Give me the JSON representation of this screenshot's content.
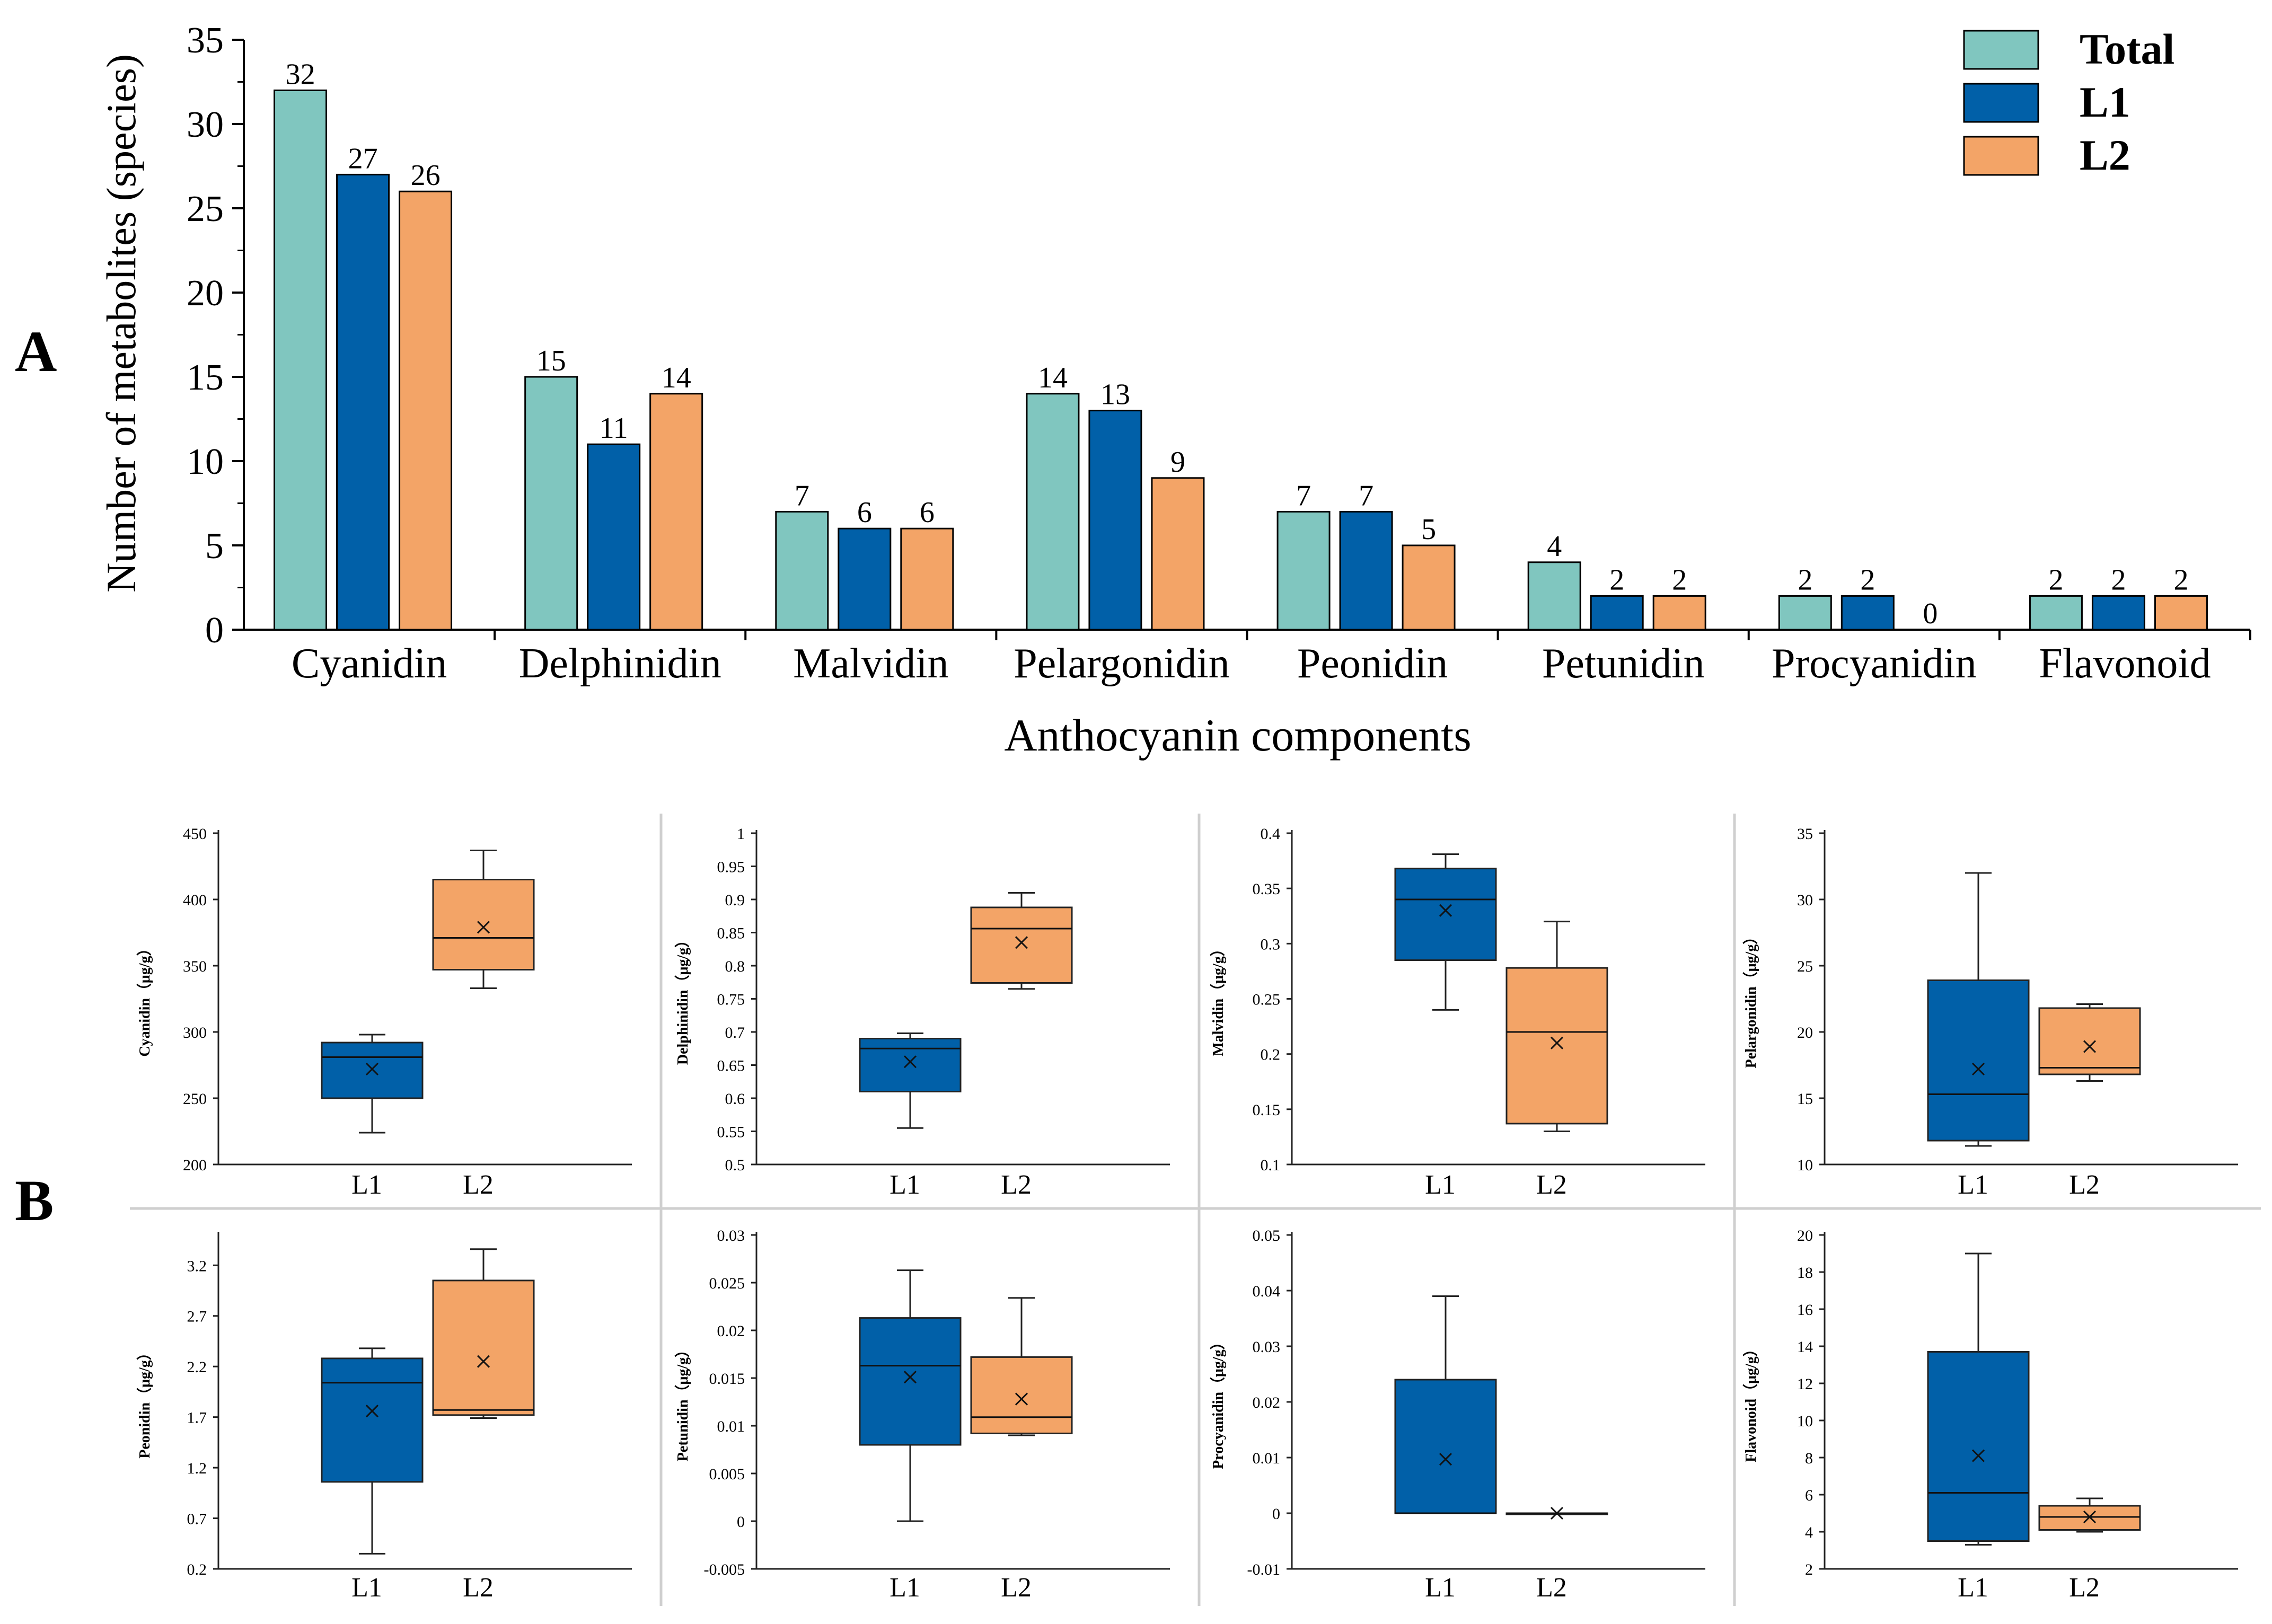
{
  "colors": {
    "total": "#80c6bf",
    "l1": "#0160a8",
    "l2": "#f3a467",
    "axis": "#000000",
    "divider": "#cfcfcf"
  },
  "panel_labels": {
    "a": "A",
    "b": "B"
  },
  "chart_data": [
    {
      "type": "bar",
      "title": "",
      "xlabel": "Anthocyanin components",
      "ylabel": "Number of metabolites (species)",
      "ylim": [
        0,
        35
      ],
      "yticks": [
        0,
        5,
        10,
        15,
        20,
        25,
        30,
        35
      ],
      "categories": [
        "Cyanidin",
        "Delphinidin",
        "Malvidin",
        "Pelargonidin",
        "Peonidin",
        "Petunidin",
        "Procyanidin",
        "Flavonoid"
      ],
      "series": [
        {
          "name": "Total",
          "color_key": "total",
          "values": [
            32,
            15,
            7,
            14,
            7,
            4,
            2,
            2
          ]
        },
        {
          "name": "L1",
          "color_key": "l1",
          "values": [
            27,
            11,
            6,
            13,
            7,
            2,
            2,
            2
          ]
        },
        {
          "name": "L2",
          "color_key": "l2",
          "values": [
            26,
            14,
            6,
            9,
            5,
            2,
            0,
            2
          ]
        }
      ],
      "legend": {
        "placement": "top-right",
        "entries": [
          "Total",
          "L1",
          "L2"
        ]
      }
    },
    {
      "type": "box",
      "ylabel": "Cyanidin（μg/g）",
      "ylim": [
        200,
        450
      ],
      "yticks": [
        200,
        250,
        300,
        350,
        400,
        450
      ],
      "tick_labels": [
        "200",
        "250",
        "300",
        "350",
        "400",
        "450"
      ],
      "groups": [
        "L1",
        "L2"
      ],
      "boxes": [
        {
          "name": "L1",
          "min": 224,
          "q1": 250,
          "median": 281,
          "q3": 292,
          "max": 298,
          "mean": 272
        },
        {
          "name": "L2",
          "min": 333,
          "q1": 347,
          "median": 371,
          "q3": 415,
          "max": 437,
          "mean": 379
        }
      ]
    },
    {
      "type": "box",
      "ylabel": "Delphinidin（μg/g）",
      "ylim": [
        0.5,
        1.0
      ],
      "yticks": [
        0.5,
        0.55,
        0.6,
        0.65,
        0.7,
        0.75,
        0.8,
        0.85,
        0.9,
        0.95,
        1.0
      ],
      "tick_labels": [
        "0.5",
        "0.55",
        "0.6",
        "0.65",
        "0.7",
        "0.75",
        "0.8",
        "0.85",
        "0.9",
        "0.95",
        "1"
      ],
      "groups": [
        "L1",
        "L2"
      ],
      "boxes": [
        {
          "name": "L1",
          "min": 0.555,
          "q1": 0.61,
          "median": 0.675,
          "q3": 0.69,
          "max": 0.698,
          "mean": 0.655
        },
        {
          "name": "L2",
          "min": 0.765,
          "q1": 0.774,
          "median": 0.856,
          "q3": 0.888,
          "max": 0.91,
          "mean": 0.835
        }
      ]
    },
    {
      "type": "box",
      "ylabel": "Malvidin（μg/g）",
      "ylim": [
        0.1,
        0.4
      ],
      "yticks": [
        0.1,
        0.15,
        0.2,
        0.25,
        0.3,
        0.35,
        0.4
      ],
      "tick_labels": [
        "0.1",
        "0.15",
        "0.2",
        "0.25",
        "0.3",
        "0.35",
        "0.4"
      ],
      "groups": [
        "L1",
        "L2"
      ],
      "boxes": [
        {
          "name": "L1",
          "min": 0.24,
          "q1": 0.285,
          "median": 0.34,
          "q3": 0.368,
          "max": 0.381,
          "mean": 0.33
        },
        {
          "name": "L2",
          "min": 0.13,
          "q1": 0.137,
          "median": 0.22,
          "q3": 0.278,
          "max": 0.32,
          "mean": 0.21
        }
      ]
    },
    {
      "type": "box",
      "ylabel": "Pelargonidin（μg/g）",
      "ylim": [
        10,
        35
      ],
      "yticks": [
        10,
        15,
        20,
        25,
        30,
        35
      ],
      "tick_labels": [
        "10",
        "15",
        "20",
        "25",
        "30",
        "35"
      ],
      "groups": [
        "L1",
        "L2"
      ],
      "boxes": [
        {
          "name": "L1",
          "min": 11.4,
          "q1": 11.8,
          "median": 15.3,
          "q3": 23.9,
          "max": 32.0,
          "mean": 17.2
        },
        {
          "name": "L2",
          "min": 16.3,
          "q1": 16.8,
          "median": 17.3,
          "q3": 21.8,
          "max": 22.1,
          "mean": 18.9
        }
      ]
    },
    {
      "type": "box",
      "ylabel": "Peonidin（μg/g）",
      "ylim": [
        0.2,
        3.5
      ],
      "yticks": [
        0.2,
        0.7,
        1.2,
        1.7,
        2.2,
        2.7,
        3.2
      ],
      "tick_labels": [
        "0.2",
        "0.7",
        "1.2",
        "1.7",
        "2.2",
        "2.7",
        "3.2"
      ],
      "groups": [
        "L1",
        "L2"
      ],
      "boxes": [
        {
          "name": "L1",
          "min": 0.35,
          "q1": 1.06,
          "median": 2.04,
          "q3": 2.28,
          "max": 2.38,
          "mean": 1.76
        },
        {
          "name": "L2",
          "min": 1.69,
          "q1": 1.72,
          "median": 1.77,
          "q3": 3.05,
          "max": 3.36,
          "mean": 2.25
        }
      ]
    },
    {
      "type": "box",
      "ylabel": "Petunidin（μg/g）",
      "ylim": [
        -0.005,
        0.03
      ],
      "yticks": [
        -0.005,
        0,
        0.005,
        0.01,
        0.015,
        0.02,
        0.025,
        0.03
      ],
      "tick_labels": [
        "-0.005",
        "0",
        "0.005",
        "0.01",
        "0.015",
        "0.02",
        "0.025",
        "0.03"
      ],
      "groups": [
        "L1",
        "L2"
      ],
      "boxes": [
        {
          "name": "L1",
          "min": 0.0,
          "q1": 0.008,
          "median": 0.0163,
          "q3": 0.0213,
          "max": 0.0263,
          "mean": 0.0151
        },
        {
          "name": "L2",
          "min": 0.009,
          "q1": 0.0092,
          "median": 0.0109,
          "q3": 0.0172,
          "max": 0.0234,
          "mean": 0.0128
        }
      ]
    },
    {
      "type": "box",
      "ylabel": "Procyanidin（μg/g）",
      "ylim": [
        -0.01,
        0.05
      ],
      "yticks": [
        -0.01,
        0,
        0.01,
        0.02,
        0.03,
        0.04,
        0.05
      ],
      "tick_labels": [
        "-0.01",
        "0",
        "0.01",
        "0.02",
        "0.03",
        "0.04",
        "0.05"
      ],
      "groups": [
        "L1",
        "L2"
      ],
      "boxes": [
        {
          "name": "L1",
          "min": 0.0,
          "q1": 0.0,
          "median": 0.0,
          "q3": 0.024,
          "max": 0.039,
          "mean": 0.0097
        },
        {
          "name": "L2",
          "min": 0.0,
          "q1": 0.0,
          "median": 0.0,
          "q3": 0.0,
          "max": 0.0,
          "mean": 0.0
        }
      ]
    },
    {
      "type": "box",
      "ylabel": "Flavonoid（μg/g）",
      "ylim": [
        2,
        20
      ],
      "yticks": [
        2,
        4,
        6,
        8,
        10,
        12,
        14,
        16,
        18,
        20
      ],
      "tick_labels": [
        "2",
        "4",
        "6",
        "8",
        "10",
        "12",
        "14",
        "16",
        "18",
        "20"
      ],
      "groups": [
        "L1",
        "L2"
      ],
      "boxes": [
        {
          "name": "L1",
          "min": 3.3,
          "q1": 3.5,
          "median": 6.1,
          "q3": 13.7,
          "max": 19.0,
          "mean": 8.1
        },
        {
          "name": "L2",
          "min": 4.0,
          "q1": 4.1,
          "median": 4.8,
          "q3": 5.4,
          "max": 5.8,
          "mean": 4.8
        }
      ]
    }
  ]
}
